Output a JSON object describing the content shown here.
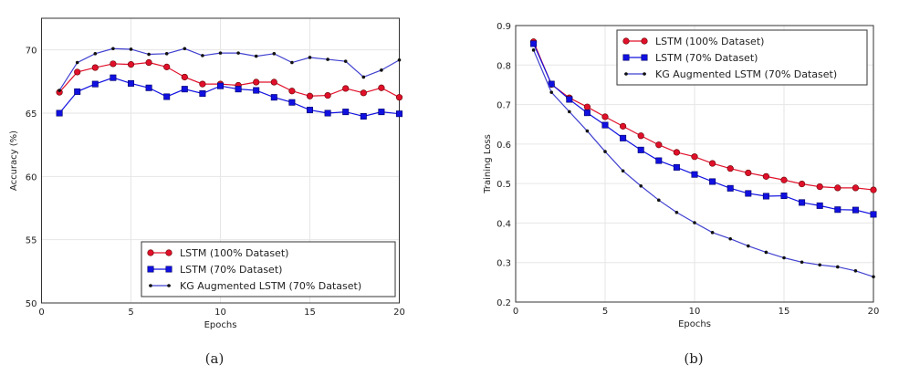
{
  "chart_data": [
    {
      "type": "line",
      "caption": "(a)",
      "xlabel": "Epochs",
      "ylabel": "Accuracy (%)",
      "xlim": [
        0,
        20
      ],
      "ylim": [
        50,
        72.5
      ],
      "xticks": [
        0,
        5,
        10,
        15,
        20
      ],
      "yticks": [
        50,
        55,
        60,
        65,
        70
      ],
      "grid": true,
      "legend_position": "bottom-right",
      "x": [
        1,
        2,
        3,
        4,
        5,
        6,
        7,
        8,
        9,
        10,
        11,
        12,
        13,
        14,
        15,
        16,
        17,
        18,
        19,
        20
      ],
      "series": [
        {
          "name": "LSTM (100% Dataset)",
          "color": "#e0102a",
          "marker": "circle",
          "values": [
            66.65,
            68.25,
            68.6,
            68.9,
            68.85,
            69.0,
            68.65,
            67.85,
            67.3,
            67.3,
            67.2,
            67.45,
            67.45,
            66.75,
            66.35,
            66.4,
            66.95,
            66.6,
            67.0,
            66.25
          ]
        },
        {
          "name": "LSTM (70% Dataset)",
          "color": "#1010e0",
          "marker": "square",
          "values": [
            65.0,
            66.7,
            67.3,
            67.8,
            67.35,
            67.0,
            66.3,
            66.9,
            66.55,
            67.15,
            66.9,
            66.8,
            66.25,
            65.85,
            65.25,
            65.0,
            65.1,
            64.75,
            65.1,
            64.95
          ]
        },
        {
          "name": "KG Augmented LSTM (70% Dataset)",
          "color": "#4040d0",
          "marker": "dot",
          "values": [
            66.8,
            69.0,
            69.7,
            70.1,
            70.05,
            69.65,
            69.7,
            70.1,
            69.55,
            69.75,
            69.75,
            69.5,
            69.7,
            69.0,
            69.4,
            69.25,
            69.1,
            67.85,
            68.4,
            69.2
          ]
        }
      ]
    },
    {
      "type": "line",
      "caption": "(b)",
      "xlabel": "Epochs",
      "ylabel": "Training Loss",
      "xlim": [
        0,
        20
      ],
      "ylim": [
        0.2,
        0.9
      ],
      "xticks": [
        0,
        5,
        10,
        15,
        20
      ],
      "yticks": [
        0.2,
        0.3,
        0.4,
        0.5,
        0.6,
        0.7,
        0.8,
        0.9
      ],
      "grid": true,
      "legend_position": "top-right",
      "x": [
        1,
        2,
        3,
        4,
        5,
        6,
        7,
        8,
        9,
        10,
        11,
        12,
        13,
        14,
        15,
        16,
        17,
        18,
        19,
        20
      ],
      "series": [
        {
          "name": "LSTM (100% Dataset)",
          "color": "#e0102a",
          "marker": "circle",
          "values": [
            0.859,
            0.751,
            0.717,
            0.694,
            0.669,
            0.645,
            0.621,
            0.598,
            0.579,
            0.568,
            0.551,
            0.538,
            0.527,
            0.518,
            0.509,
            0.499,
            0.492,
            0.489,
            0.489,
            0.484
          ]
        },
        {
          "name": "LSTM (70% Dataset)",
          "color": "#1010e0",
          "marker": "square",
          "values": [
            0.854,
            0.752,
            0.713,
            0.679,
            0.648,
            0.615,
            0.585,
            0.558,
            0.541,
            0.523,
            0.505,
            0.488,
            0.475,
            0.468,
            0.469,
            0.452,
            0.444,
            0.434,
            0.433,
            0.422
          ]
        },
        {
          "name": "KG Augmented LSTM (70% Dataset)",
          "color": "#4040d0",
          "marker": "dot",
          "values": [
            0.838,
            0.731,
            0.682,
            0.633,
            0.581,
            0.532,
            0.494,
            0.458,
            0.427,
            0.401,
            0.376,
            0.36,
            0.342,
            0.326,
            0.312,
            0.301,
            0.294,
            0.289,
            0.279,
            0.264
          ]
        }
      ]
    }
  ]
}
